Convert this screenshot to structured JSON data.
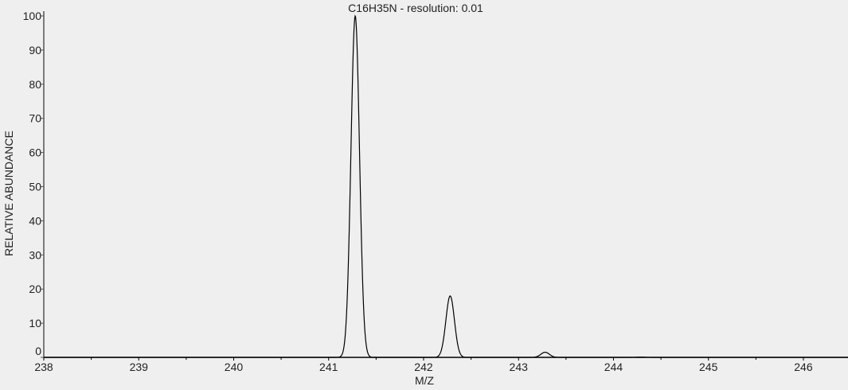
{
  "chart_data": {
    "type": "line",
    "title": "C16H35N - resolution: 0.01",
    "xlabel": "M/Z",
    "ylabel": "RELATIVE ABUNDANCE",
    "xlim": [
      238,
      246.47
    ],
    "ylim": [
      0,
      100
    ],
    "x_ticks": [
      "238",
      "239",
      "240",
      "241",
      "242",
      "243",
      "244",
      "245",
      "246"
    ],
    "y_ticks": [
      "0",
      "10",
      "20",
      "30",
      "40",
      "50",
      "60",
      "70",
      "80",
      "90",
      "100"
    ],
    "minor_x_tick_step": 0.5,
    "grid": false,
    "line_color": "#000000",
    "background": "#efefef",
    "peaks": [
      {
        "mz": 241.28,
        "abundance": 100
      },
      {
        "mz": 242.28,
        "abundance": 18
      },
      {
        "mz": 243.28,
        "abundance": 1.5
      },
      {
        "mz": 244.29,
        "abundance": 0.1
      }
    ]
  }
}
